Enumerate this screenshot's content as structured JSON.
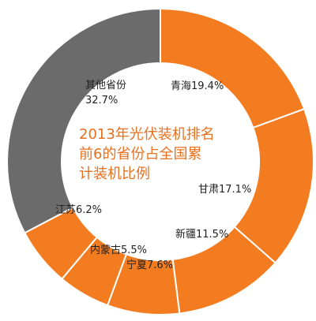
{
  "chart_data": {
    "type": "pie",
    "variant": "donut",
    "title_lines": [
      "2013年光伏装机排名",
      "前6的省份占全国累",
      "计装机比例"
    ],
    "slices": [
      {
        "label": "青海19.4%",
        "name": "青海",
        "value": 19.4,
        "color": "#f47c20"
      },
      {
        "label": "甘肃17.1%",
        "name": "甘肃",
        "value": 17.1,
        "color": "#f47c20"
      },
      {
        "label": "新疆11.5%",
        "name": "新疆",
        "value": 11.5,
        "color": "#f47c20"
      },
      {
        "label": "宁夏7.6%",
        "name": "宁夏",
        "value": 7.6,
        "color": "#f47c20"
      },
      {
        "label": "内蒙古5.5%",
        "name": "内蒙古",
        "value": 5.5,
        "color": "#f47c20"
      },
      {
        "label": "江苏6.2%",
        "name": "江苏",
        "value": 6.2,
        "color": "#f47c20"
      },
      {
        "label_lines": [
          "其他省份",
          "32.7%"
        ],
        "name": "其他省份",
        "value": 32.7,
        "color": "#6b6b6b"
      }
    ],
    "start_angle_deg": 0,
    "direction": "clockwise",
    "separator_color": "#ffffff",
    "title_color": "#e8701f"
  }
}
